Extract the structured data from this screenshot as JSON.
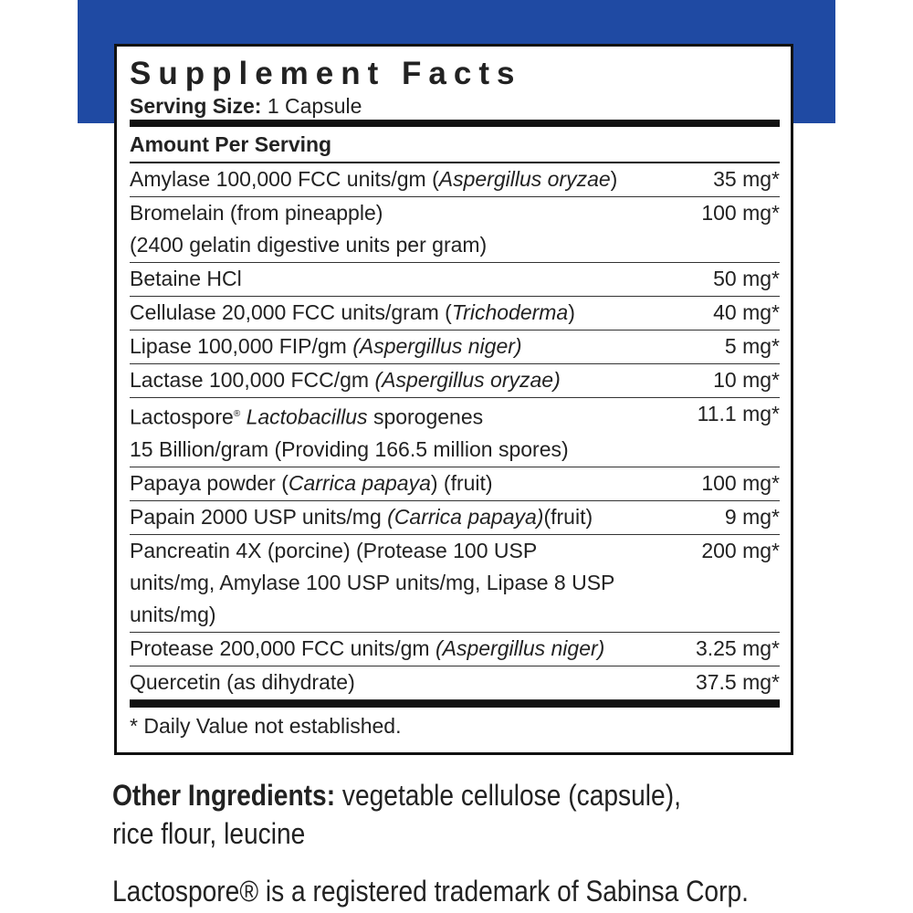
{
  "panel": {
    "title": "Supplement Facts",
    "serving_size_label": "Serving Size:",
    "serving_size": "1 Capsule",
    "amount_header": "Amount Per Serving",
    "rows": [
      {
        "name": [
          "Amylase 100,000 FCC units/gm (",
          "Aspergillus oryzae",
          ")"
        ],
        "amount": "35 mg*"
      },
      {
        "name": [
          "Bromelain (from pineapple)",
          "(2400 gelatin digestive units per gram)"
        ],
        "amount": "100 mg*"
      },
      {
        "name": [
          "Betaine HCl"
        ],
        "amount": "50 mg*"
      },
      {
        "name": [
          "Cellulase 20,000 FCC units/gram (",
          "Trichoderma",
          ")"
        ],
        "amount": "40 mg*"
      },
      {
        "name": [
          "Lipase 100,000 FIP/gm",
          "(Aspergillus niger)"
        ],
        "amount": "5 mg*"
      },
      {
        "name": [
          "Lactase 100,000 FCC/gm",
          "(Aspergillus oryzae)"
        ],
        "amount": "10 mg*"
      },
      {
        "name": [
          "Lactospore",
          "®",
          "Lactobacillus",
          "sporogenes",
          "15 Billion/gram (Providing 166.5 million spores)"
        ],
        "amount": "11.1 mg*"
      },
      {
        "name": [
          "Papaya powder (",
          "Carrica papaya",
          ") (fruit)"
        ],
        "amount": "100 mg*"
      },
      {
        "name": [
          "Papain 2000 USP units/mg",
          "(Carrica papaya)",
          "(fruit)"
        ],
        "amount": "9 mg*"
      },
      {
        "name": [
          "Pancreatin 4X (porcine) (Protease 100 USP units/mg, Amylase 100 USP units/mg, Lipase 8 USP units/mg)"
        ],
        "amount": "200 mg*"
      },
      {
        "name": [
          "Protease 200,000 FCC units/gm",
          "(Aspergillus niger)"
        ],
        "amount": "3.25 mg*"
      },
      {
        "name": [
          "Quercetin (as dihydrate)"
        ],
        "amount": "37.5 mg*"
      }
    ],
    "footnote": "* Daily Value not established."
  },
  "other_ingredients": {
    "label": "Other Ingredients:",
    "text": "vegetable cellulose (capsule), rice flour, leucine"
  },
  "trademark": "Lactospore® is a registered trademark of Sabinsa Corp."
}
